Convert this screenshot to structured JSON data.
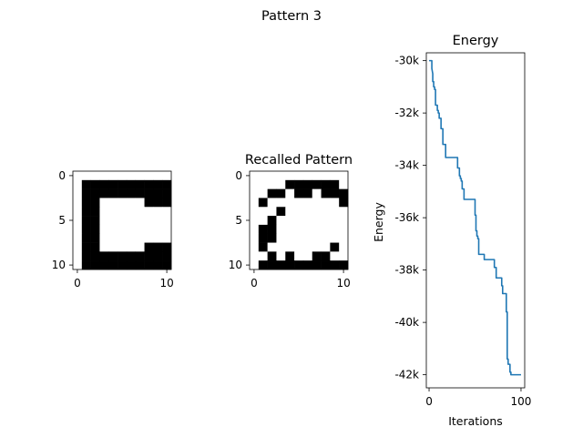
{
  "figure": {
    "suptitle": "Pattern 3"
  },
  "chart_data": [
    {
      "type": "heatmap",
      "title": "",
      "xticks": [
        0,
        10
      ],
      "yticks": [
        0,
        5,
        10
      ],
      "grid": false,
      "colormap": {
        "0": "#ffffff",
        "1": "#000000"
      },
      "values": [
        [
          0,
          0,
          0,
          0,
          0,
          0,
          0,
          0,
          0,
          0,
          0
        ],
        [
          0,
          1,
          1,
          1,
          1,
          1,
          1,
          1,
          1,
          1,
          1
        ],
        [
          0,
          1,
          1,
          1,
          1,
          1,
          1,
          1,
          1,
          1,
          1
        ],
        [
          0,
          1,
          1,
          0,
          0,
          0,
          0,
          0,
          1,
          1,
          1
        ],
        [
          0,
          1,
          1,
          0,
          0,
          0,
          0,
          0,
          0,
          0,
          0
        ],
        [
          0,
          1,
          1,
          0,
          0,
          0,
          0,
          0,
          0,
          0,
          0
        ],
        [
          0,
          1,
          1,
          0,
          0,
          0,
          0,
          0,
          0,
          0,
          0
        ],
        [
          0,
          1,
          1,
          0,
          0,
          0,
          0,
          0,
          0,
          0,
          0
        ],
        [
          0,
          1,
          1,
          0,
          0,
          0,
          0,
          0,
          1,
          1,
          1
        ],
        [
          0,
          1,
          1,
          1,
          1,
          1,
          1,
          1,
          1,
          1,
          1
        ],
        [
          0,
          1,
          1,
          1,
          1,
          1,
          1,
          1,
          1,
          1,
          1
        ]
      ]
    },
    {
      "type": "heatmap",
      "title": "Recalled Pattern",
      "xticks": [
        0,
        10
      ],
      "yticks": [
        0,
        5,
        10
      ],
      "grid": false,
      "colormap": {
        "0": "#ffffff",
        "1": "#000000"
      },
      "values": [
        [
          0,
          0,
          0,
          0,
          0,
          0,
          0,
          0,
          0,
          0,
          0
        ],
        [
          0,
          0,
          0,
          0,
          1,
          1,
          1,
          1,
          1,
          1,
          0
        ],
        [
          0,
          0,
          1,
          1,
          0,
          1,
          1,
          0,
          1,
          1,
          1
        ],
        [
          0,
          1,
          0,
          0,
          0,
          0,
          0,
          0,
          0,
          0,
          1
        ],
        [
          0,
          0,
          0,
          1,
          0,
          0,
          0,
          0,
          0,
          0,
          0
        ],
        [
          0,
          0,
          1,
          0,
          0,
          0,
          0,
          0,
          0,
          0,
          0
        ],
        [
          0,
          1,
          1,
          0,
          0,
          0,
          0,
          0,
          0,
          0,
          0
        ],
        [
          0,
          1,
          1,
          0,
          0,
          0,
          0,
          0,
          0,
          0,
          0
        ],
        [
          0,
          1,
          0,
          0,
          0,
          0,
          0,
          0,
          0,
          1,
          0
        ],
        [
          0,
          0,
          1,
          0,
          1,
          0,
          0,
          1,
          1,
          0,
          0
        ],
        [
          0,
          1,
          1,
          1,
          1,
          1,
          1,
          1,
          1,
          1,
          1
        ]
      ]
    },
    {
      "type": "line",
      "title": "Energy",
      "xlabel": "Iterations",
      "ylabel": "Energy",
      "xlim": [
        -3,
        104
      ],
      "ylim": [
        -42500,
        -29700
      ],
      "xticks": [
        0,
        100
      ],
      "yticks": [
        -30000,
        -32000,
        -34000,
        -36000,
        -38000,
        -40000,
        -42000
      ],
      "ytick_labels": [
        "-30k",
        "-32k",
        "-34k",
        "-36k",
        "-38k",
        "-40k",
        "-42k"
      ],
      "grid": false,
      "series": [
        {
          "color": "#1f77b4",
          "x": [
            0,
            3,
            3,
            4,
            4,
            5,
            5,
            6,
            6,
            7,
            7,
            9,
            9,
            10,
            10,
            11,
            11,
            13,
            13,
            15,
            15,
            18,
            18,
            22,
            22,
            31,
            31,
            33,
            33,
            34,
            34,
            35,
            35,
            36,
            36,
            38,
            38,
            40,
            40,
            50,
            50,
            51,
            51,
            52,
            52,
            53,
            53,
            54,
            54,
            60,
            60,
            71,
            71,
            73,
            73,
            79,
            79,
            80,
            80,
            81,
            81,
            84,
            84,
            85,
            85,
            86,
            86,
            88,
            88,
            89,
            89,
            100
          ],
          "y": [
            -30000,
            -30000,
            -30300,
            -30500,
            -30800,
            -30800,
            -31000,
            -31000,
            -31100,
            -31100,
            -31700,
            -31700,
            -31900,
            -31900,
            -32000,
            -32000,
            -32200,
            -32200,
            -32600,
            -32600,
            -33200,
            -33200,
            -33700,
            -33700,
            -33700,
            -33700,
            -34100,
            -34100,
            -34400,
            -34400,
            -34500,
            -34500,
            -34600,
            -34600,
            -34900,
            -34900,
            -35300,
            -35300,
            -35300,
            -35300,
            -35900,
            -35900,
            -36500,
            -36500,
            -36700,
            -36700,
            -36800,
            -36800,
            -37400,
            -37400,
            -37600,
            -37600,
            -37900,
            -37900,
            -38300,
            -38300,
            -38600,
            -38600,
            -38900,
            -38900,
            -38900,
            -38900,
            -39600,
            -39600,
            -41400,
            -41400,
            -41600,
            -41600,
            -41900,
            -41900,
            -42000,
            -42000
          ]
        }
      ]
    }
  ]
}
